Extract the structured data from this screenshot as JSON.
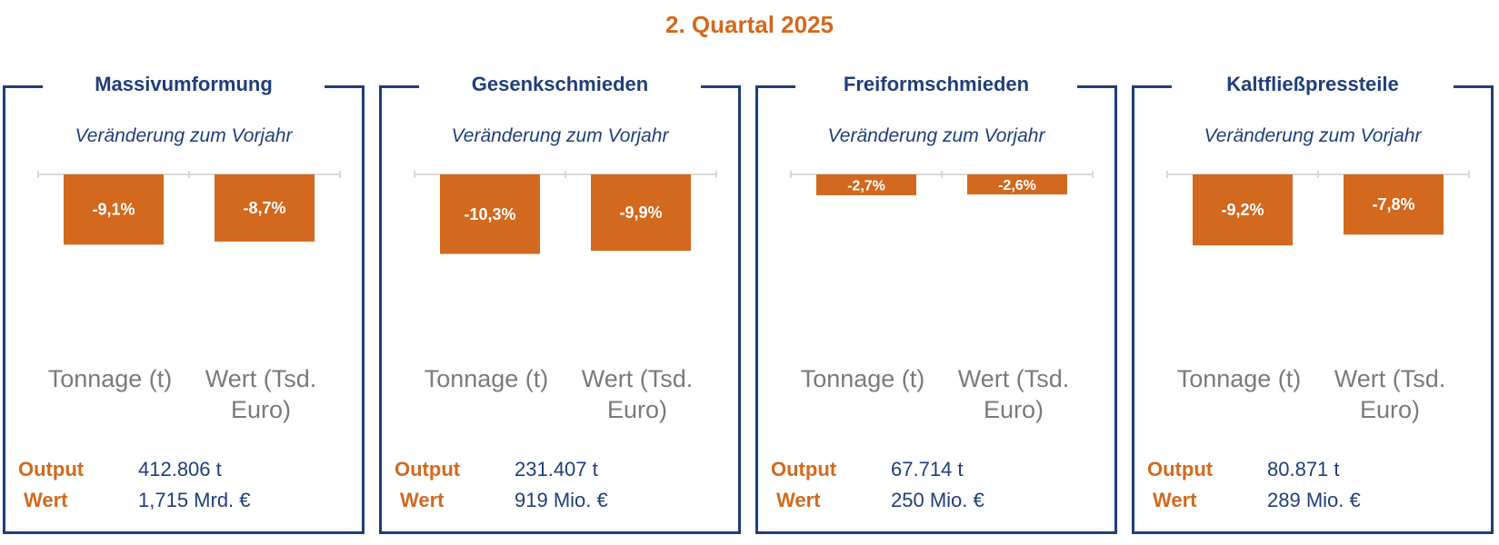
{
  "title": "2. Quartal 2025",
  "colors": {
    "accent": "#D2691E",
    "navy": "#1F3E7A",
    "category": "#7A7A7A"
  },
  "panels": [
    {
      "title": "Massivumformung",
      "subtitle": "Veränderung zum Vorjahr",
      "categories": [
        "Tonnage (t)",
        "Wert (Tsd. Euro)"
      ],
      "output_label": "Output",
      "output_value": "412.806 t",
      "wert_label": "Wert",
      "wert_value": "1,715 Mrd. €"
    },
    {
      "title": "Gesenkschmieden",
      "subtitle": "Veränderung zum Vorjahr",
      "categories": [
        "Tonnage (t)",
        "Wert (Tsd. Euro)"
      ],
      "output_label": "Output",
      "output_value": "231.407 t",
      "wert_label": "Wert",
      "wert_value": "919 Mio. €"
    },
    {
      "title": "Freiformschmieden",
      "subtitle": "Veränderung zum Vorjahr",
      "categories": [
        "Tonnage (t)",
        "Wert (Tsd. Euro)"
      ],
      "output_label": "Output",
      "output_value": "67.714 t",
      "wert_label": "Wert",
      "wert_value": "250 Mio. €"
    },
    {
      "title": "Kaltfließpressteile",
      "subtitle": "Veränderung zum Vorjahr",
      "categories": [
        "Tonnage (t)",
        "Wert (Tsd. Euro)"
      ],
      "output_label": "Output",
      "output_value": "80.871 t",
      "wert_label": "Wert",
      "wert_value": "289 Mio. €"
    }
  ],
  "chart_data": [
    {
      "type": "bar",
      "title": "Massivumformung",
      "categories": [
        "Tonnage (t)",
        "Wert (Tsd. Euro)"
      ],
      "values": [
        -9.1,
        -8.7
      ],
      "data_labels": [
        "-9,1%",
        "-8,7%"
      ],
      "ylim": [
        -20,
        0
      ],
      "unit": "%",
      "color": "#D2691E"
    },
    {
      "type": "bar",
      "title": "Gesenkschmieden",
      "categories": [
        "Tonnage (t)",
        "Wert (Tsd. Euro)"
      ],
      "values": [
        -10.3,
        -9.9
      ],
      "data_labels": [
        "-10,3%",
        "-9,9%"
      ],
      "ylim": [
        -20,
        0
      ],
      "unit": "%",
      "color": "#D2691E"
    },
    {
      "type": "bar",
      "title": "Freiformschmieden",
      "categories": [
        "Tonnage (t)",
        "Wert (Tsd. Euro)"
      ],
      "values": [
        -2.7,
        -2.6
      ],
      "data_labels": [
        "-2,7%",
        "-2,6%"
      ],
      "ylim": [
        -20,
        0
      ],
      "unit": "%",
      "color": "#D2691E"
    },
    {
      "type": "bar",
      "title": "Kaltfließpressteile",
      "categories": [
        "Tonnage (t)",
        "Wert (Tsd. Euro)"
      ],
      "values": [
        -9.2,
        -7.8
      ],
      "data_labels": [
        "-9,2%",
        "-7,8%"
      ],
      "ylim": [
        -20,
        0
      ],
      "unit": "%",
      "color": "#D2691E"
    }
  ]
}
